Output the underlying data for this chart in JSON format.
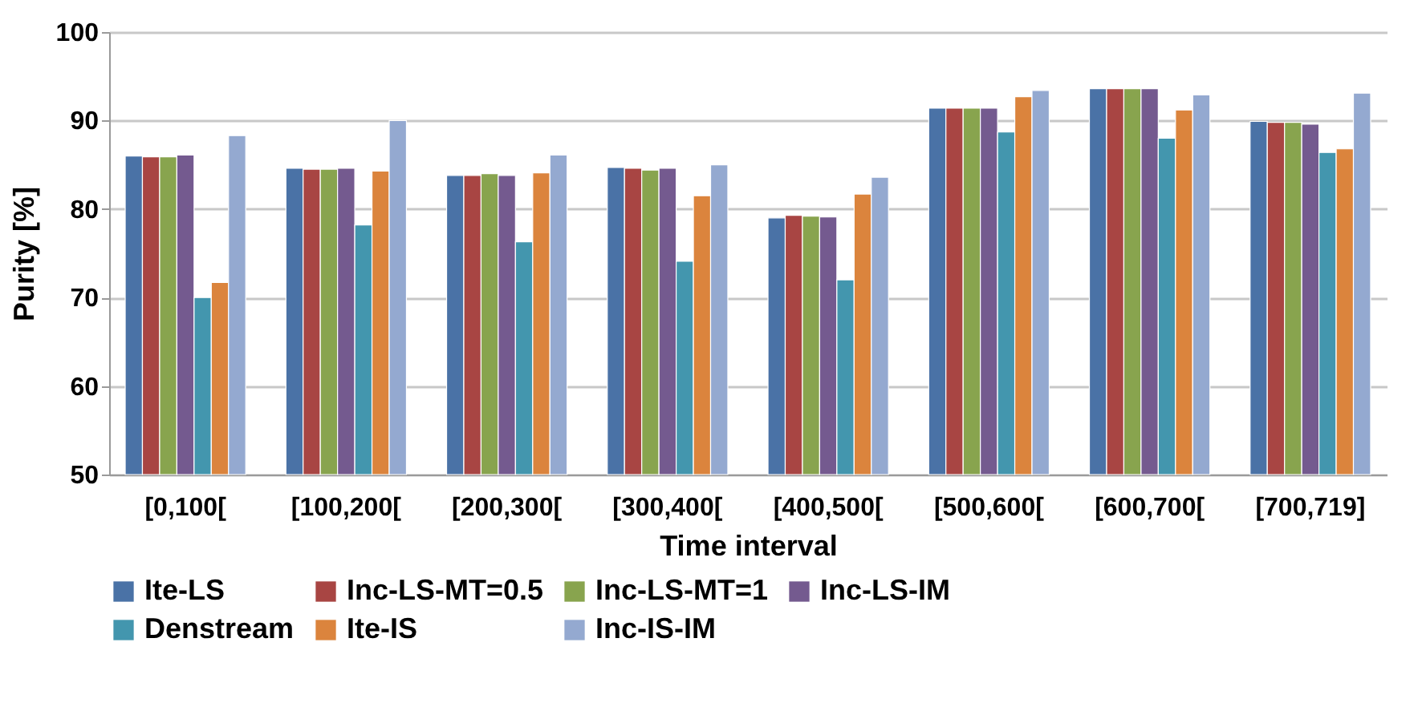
{
  "chart_data": {
    "type": "bar",
    "xlabel": "Time interval",
    "ylabel": "Purity [%]",
    "categories": [
      "[0,100[",
      "[100,200[",
      "[200,300[",
      "[300,400[",
      "[400,500[",
      "[500,600[",
      "[600,700[",
      "[700,719]"
    ],
    "series": [
      {
        "name": "Ite-LS",
        "color": "#4a72a6",
        "values": [
          86.0,
          84.6,
          83.8,
          84.7,
          79.0,
          91.4,
          93.6,
          89.9
        ]
      },
      {
        "name": "Inc-LS-MT=0.5",
        "color": "#a84543",
        "values": [
          85.9,
          84.5,
          83.8,
          84.6,
          79.3,
          91.4,
          93.6,
          89.8
        ]
      },
      {
        "name": "Inc-LS-MT=1",
        "color": "#88a44e",
        "values": [
          85.9,
          84.5,
          84.0,
          84.4,
          79.2,
          91.4,
          93.6,
          89.8
        ]
      },
      {
        "name": "Inc-LS-IM",
        "color": "#745a8f",
        "values": [
          86.1,
          84.6,
          83.8,
          84.6,
          79.1,
          91.4,
          93.6,
          89.6
        ]
      },
      {
        "name": "Denstream",
        "color": "#4396ae",
        "values": [
          70.0,
          78.2,
          76.3,
          74.1,
          72.0,
          88.7,
          88.0,
          86.4
        ]
      },
      {
        "name": "Ite-IS",
        "color": "#db843d",
        "values": [
          71.7,
          84.3,
          84.1,
          81.5,
          81.7,
          92.7,
          91.2,
          86.8
        ]
      },
      {
        "name": "Inc-IS-IM",
        "color": "#94a9d0",
        "values": [
          88.3,
          90.0,
          86.1,
          85.0,
          83.6,
          93.4,
          92.9,
          93.1
        ]
      }
    ],
    "ylim": [
      50,
      100
    ],
    "yticks": [
      50,
      60,
      70,
      80,
      90,
      100
    ],
    "grid": "y",
    "legend": "bottom"
  }
}
